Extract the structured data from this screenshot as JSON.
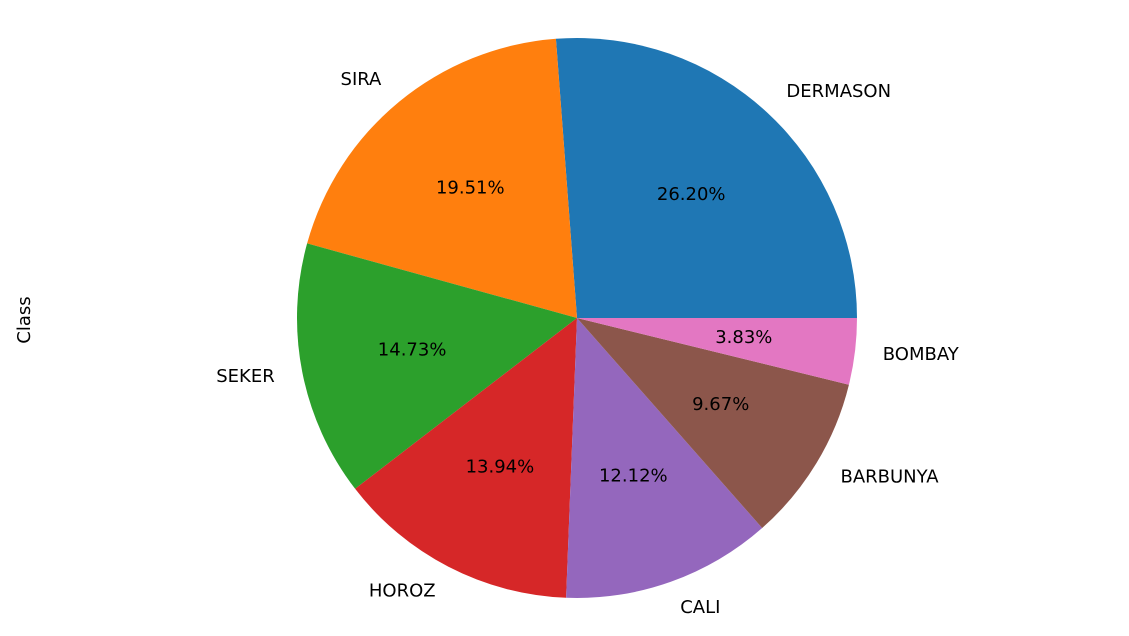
{
  "chart_data": {
    "type": "pie",
    "ylabel": "Class",
    "categories": [
      "DERMASON",
      "SIRA",
      "SEKER",
      "HOROZ",
      "CALI",
      "BARBUNYA",
      "BOMBAY"
    ],
    "values": [
      26.2,
      19.51,
      14.73,
      13.94,
      12.12,
      9.67,
      3.83
    ],
    "value_labels": [
      "26.20%",
      "19.51%",
      "14.73%",
      "13.94%",
      "12.12%",
      "9.67%",
      "3.83%"
    ],
    "colors": [
      "#1f77b4",
      "#ff7f0e",
      "#2ca02c",
      "#d62728",
      "#9467bd",
      "#8c564b",
      "#e377c2"
    ],
    "start_angle_deg": 0,
    "direction": "counterclockwise"
  }
}
